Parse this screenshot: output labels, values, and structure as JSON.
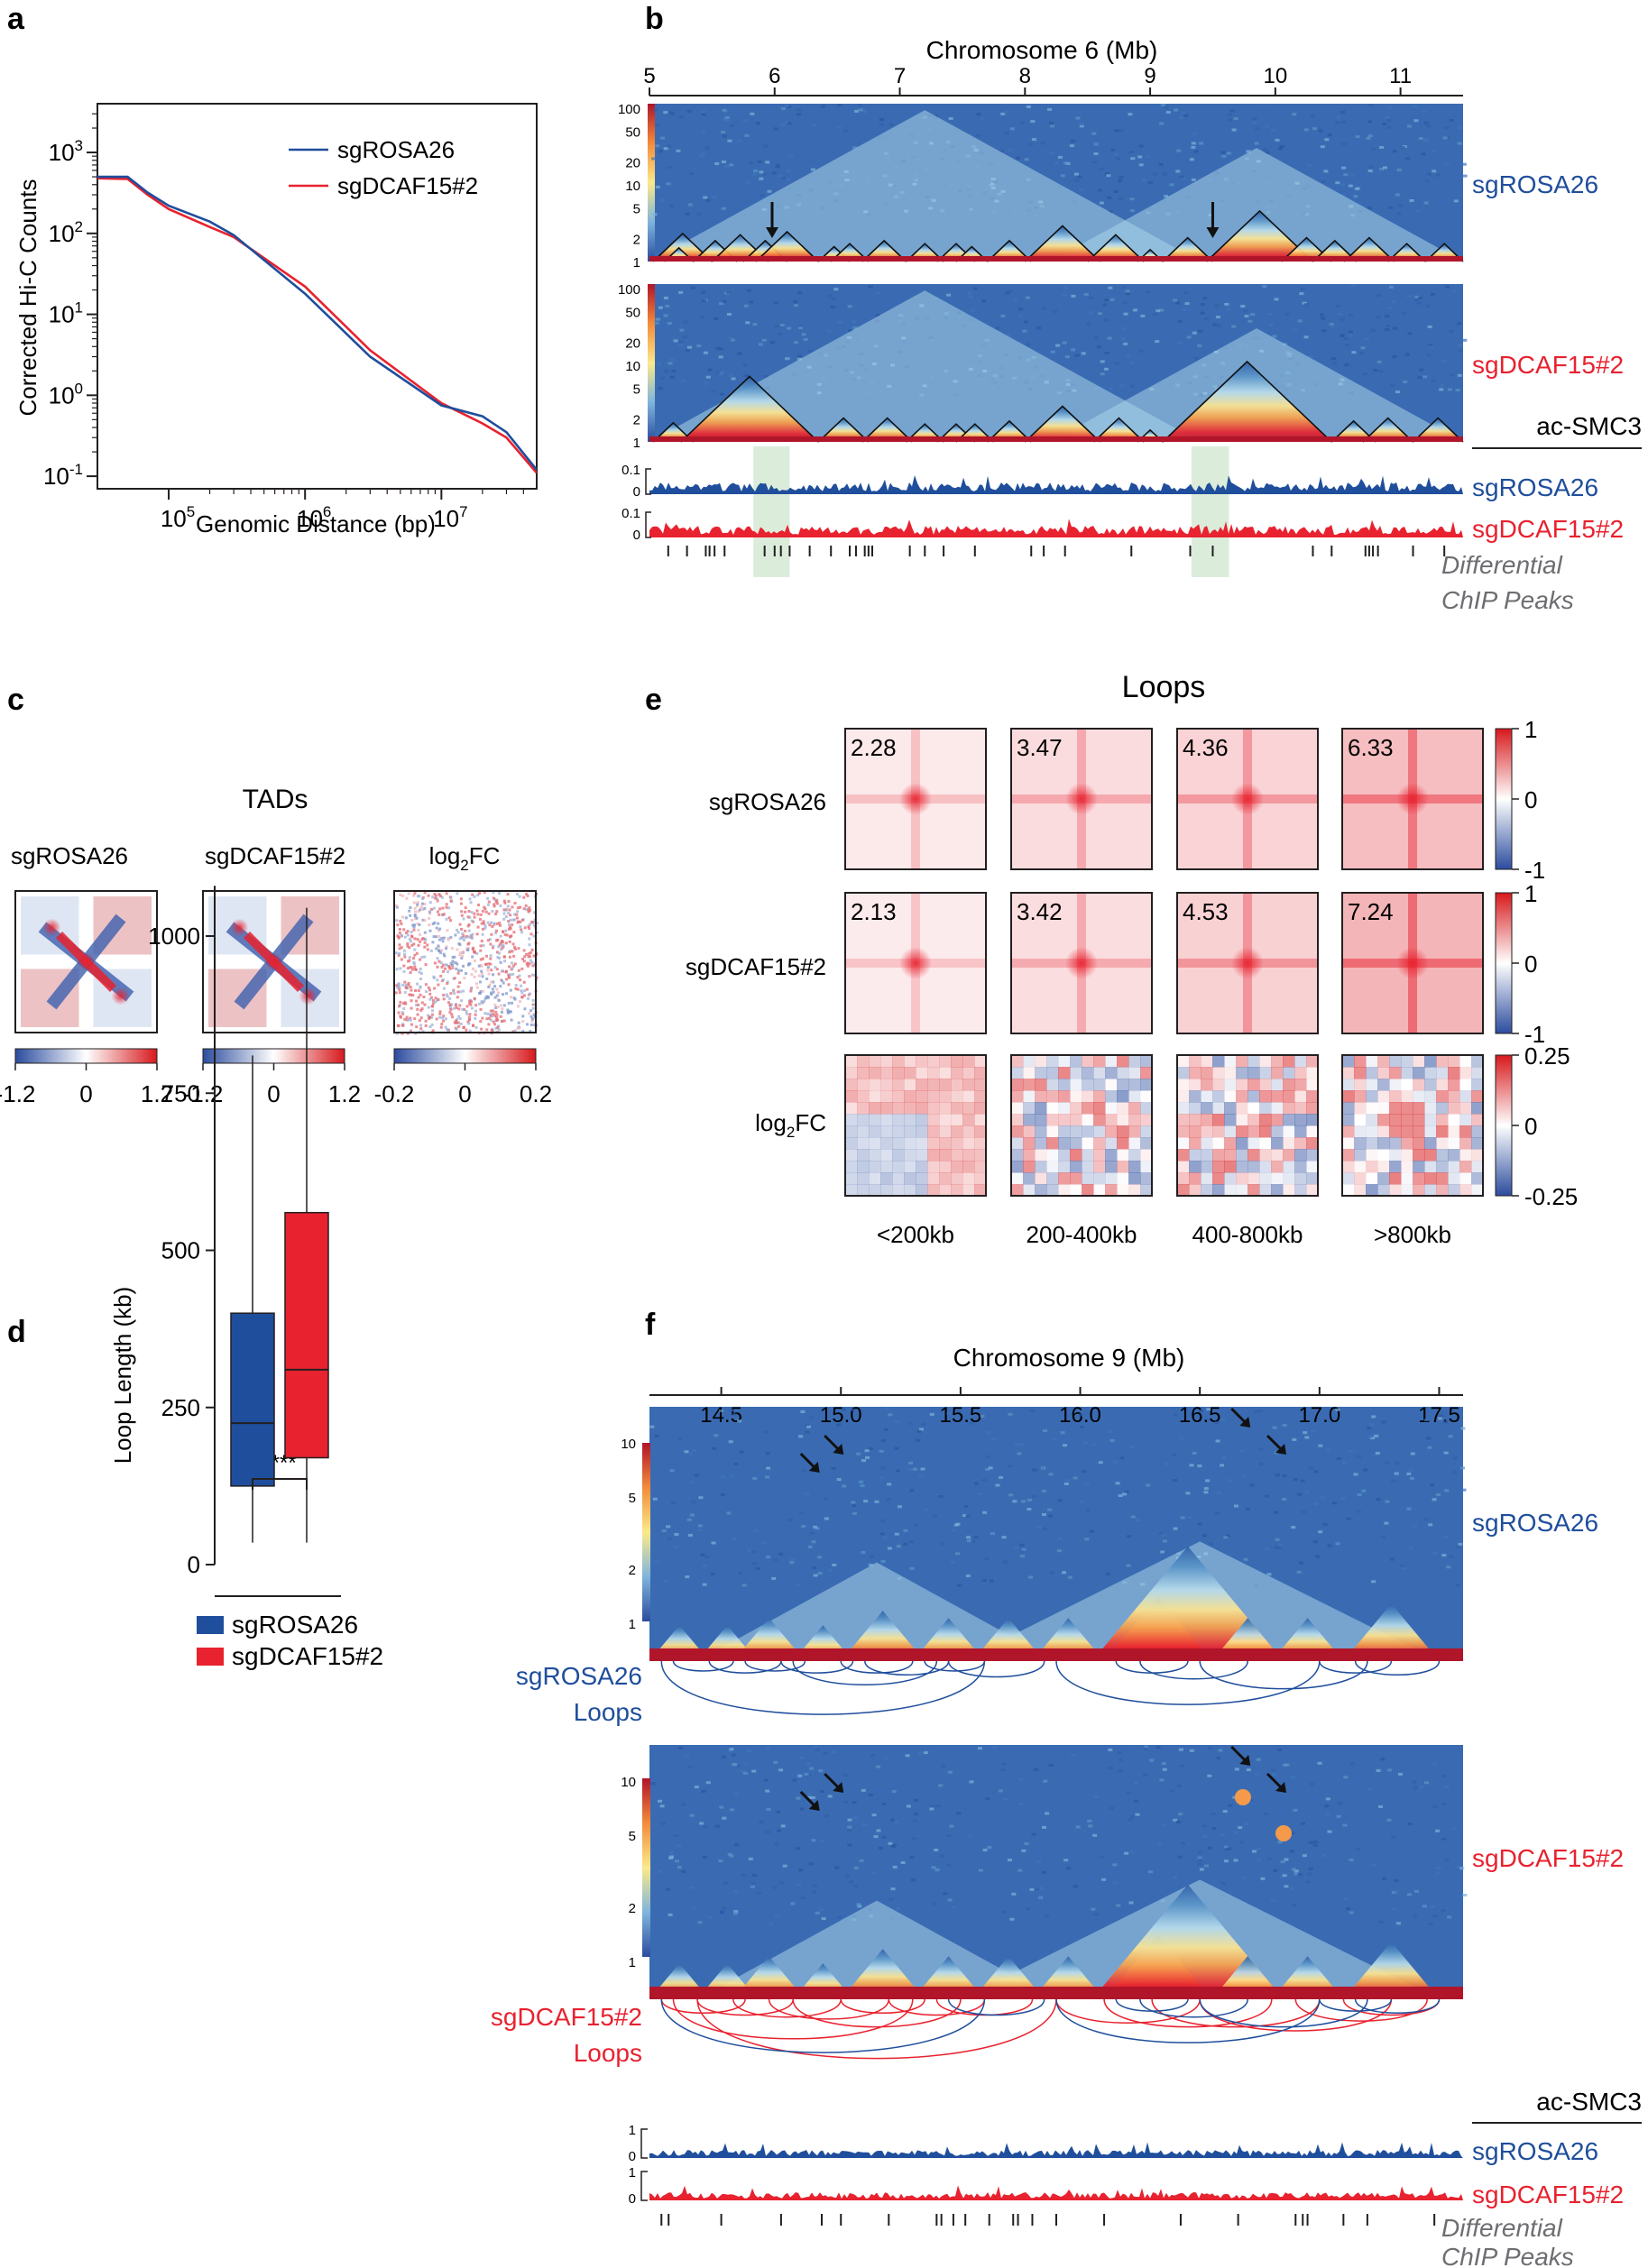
{
  "colors": {
    "blue": "#1f4e9c",
    "red": "#e8222f",
    "dark": "#231f20",
    "grey": "#6d6e71",
    "shade": "#cfe5cf",
    "maroon": "#b0152a"
  },
  "panels": {
    "a": "a",
    "b": "b",
    "c": "c",
    "d": "d",
    "e": "e",
    "f": "f"
  },
  "panel_a": {
    "ylabel": "Corrected Hi-C Counts",
    "xlabel": "Genomic Distance (bp)",
    "legend": [
      {
        "name": "sgROSA26",
        "color": "blue"
      },
      {
        "name": "sgDCAF15#2",
        "color": "red"
      }
    ],
    "chart_data": {
      "type": "line",
      "scale": "log-log",
      "xlim": [
        30000,
        50000000
      ],
      "ylim": [
        0.07,
        4000
      ],
      "xlabel": "Genomic Distance (bp)",
      "ylabel": "Corrected Hi-C Counts",
      "yticks": [
        {
          "base": "10",
          "exp": "-1",
          "v": 0.1
        },
        {
          "base": "10",
          "exp": "0",
          "v": 1
        },
        {
          "base": "10",
          "exp": "1",
          "v": 10
        },
        {
          "base": "10",
          "exp": "2",
          "v": 100
        },
        {
          "base": "10",
          "exp": "3",
          "v": 1000
        }
      ],
      "xticks": [
        {
          "base": "10",
          "exp": "5",
          "v": 100000
        },
        {
          "base": "10",
          "exp": "6",
          "v": 1000000
        },
        {
          "base": "10",
          "exp": "7",
          "v": 10000000
        }
      ],
      "series": [
        {
          "name": "sgROSA26",
          "x": [
            30000,
            50000,
            70000,
            100000,
            200000,
            300000,
            1000000,
            3000000,
            10000000,
            20000000,
            30000000,
            50000000
          ],
          "y": [
            500,
            500,
            320,
            220,
            140,
            95,
            18,
            3.0,
            0.75,
            0.55,
            0.35,
            0.12
          ]
        },
        {
          "name": "sgDCAF15#2",
          "x": [
            30000,
            50000,
            70000,
            100000,
            200000,
            300000,
            1000000,
            3000000,
            10000000,
            20000000,
            30000000,
            50000000
          ],
          "y": [
            480,
            470,
            300,
            200,
            120,
            90,
            22,
            3.6,
            0.8,
            0.45,
            0.3,
            0.11
          ]
        }
      ]
    }
  },
  "panel_b": {
    "title": "Chromosome 6 (Mb)",
    "ticks": [
      "5",
      "6",
      "7",
      "8",
      "9",
      "10",
      "11"
    ],
    "tick_values": [
      5,
      6,
      7,
      8,
      9,
      10,
      11
    ],
    "range": [
      5,
      11.5
    ],
    "scale_ticks": [
      "100",
      "50",
      "20",
      "10",
      "5",
      "2",
      "1"
    ],
    "scale_values": [
      100,
      50,
      20,
      10,
      5,
      2,
      1
    ],
    "tracks": [
      "sgROSA26",
      "sgDCAF15#2"
    ],
    "arrows_mb": [
      5.98,
      9.5
    ],
    "tads_rosa": [
      [
        5.03,
        5.5
      ],
      [
        5.12,
        5.35
      ],
      [
        5.35,
        5.7
      ],
      [
        5.5,
        5.95
      ],
      [
        5.75,
        6.1
      ],
      [
        5.85,
        6.35
      ],
      [
        6.35,
        6.6
      ],
      [
        6.45,
        6.75
      ],
      [
        6.7,
        7.05
      ],
      [
        7.05,
        7.35
      ],
      [
        7.3,
        7.6
      ],
      [
        7.45,
        7.7
      ],
      [
        7.7,
        8.05
      ],
      [
        8.0,
        8.6
      ],
      [
        8.5,
        8.95
      ],
      [
        8.9,
        9.1
      ],
      [
        9.1,
        9.5
      ],
      [
        9.45,
        10.3
      ],
      [
        10.05,
        10.45
      ],
      [
        10.3,
        10.65
      ],
      [
        10.55,
        10.95
      ],
      [
        10.9,
        11.2
      ],
      [
        11.2,
        11.5
      ]
    ],
    "tads_dcaf": [
      [
        5.03,
        5.35
      ],
      [
        5.25,
        6.35
      ],
      [
        6.35,
        6.75
      ],
      [
        6.7,
        7.1
      ],
      [
        7.05,
        7.35
      ],
      [
        7.3,
        7.6
      ],
      [
        7.45,
        7.75
      ],
      [
        7.7,
        8.05
      ],
      [
        8.0,
        8.6
      ],
      [
        8.55,
        8.95
      ],
      [
        8.9,
        9.1
      ],
      [
        9.1,
        10.45
      ],
      [
        10.45,
        10.8
      ],
      [
        10.7,
        11.1
      ],
      [
        11.1,
        11.5
      ]
    ],
    "chip_label": "ac-SMC3",
    "chip_scale": [
      "0.1",
      "0"
    ],
    "chip_tracks": [
      "sgROSA26",
      "sgDCAF15#2"
    ],
    "diff_label": [
      "Differential",
      "ChIP Peaks"
    ],
    "shade_mb": [
      [
        5.83,
        6.12
      ],
      [
        9.33,
        9.63
      ]
    ],
    "peaks_mb": [
      5.15,
      5.3,
      5.45,
      5.48,
      5.52,
      5.6,
      5.92,
      6.0,
      6.05,
      6.12,
      6.28,
      6.45,
      6.6,
      6.65,
      6.72,
      6.75,
      6.78,
      7.08,
      7.2,
      7.35,
      7.6,
      8.05,
      8.15,
      8.32,
      8.85,
      9.32,
      9.5,
      10.3,
      10.45,
      10.72,
      10.75,
      10.78,
      10.82,
      11.1,
      11.35
    ]
  },
  "panel_c": {
    "title": "TADs",
    "maps": [
      {
        "label": "sgROSA26",
        "sub": ""
      },
      {
        "label": "sgDCAF15#2",
        "sub": ""
      },
      {
        "label": "log",
        "sub": "2",
        "suffix": "FC"
      }
    ],
    "colorbars": [
      [
        "-1.2",
        "0",
        "1.2"
      ],
      [
        "-1.2",
        "0",
        "1.2"
      ],
      [
        "-0.2",
        "0",
        "0.2"
      ]
    ]
  },
  "panel_d": {
    "ylabel": "Loop Length (kb)",
    "significance": "****",
    "yticks": [
      "0",
      "250",
      "500",
      "750",
      "1000"
    ],
    "legend": [
      {
        "name": "sgROSA26",
        "color": "blue"
      },
      {
        "name": "sgDCAF15#2",
        "color": "red"
      }
    ],
    "chart_data": {
      "type": "box",
      "ylabel": "Loop Length (kb)",
      "ylim": [
        0,
        1080
      ],
      "series": [
        {
          "name": "sgROSA26",
          "whisker_low": 35,
          "q1": 125,
          "median": 225,
          "q3": 400,
          "whisker_high": 810
        },
        {
          "name": "sgDCAF15#2",
          "whisker_low": 35,
          "q1": 170,
          "median": 310,
          "q3": 560,
          "whisker_high": 1045
        }
      ],
      "significance": "****"
    }
  },
  "panel_e": {
    "title": "Loops",
    "rows": [
      {
        "label": "sgROSA26"
      },
      {
        "label": "sgDCAF15#2"
      },
      {
        "label": "log",
        "sub": "2",
        "suffix": "FC"
      }
    ],
    "columns": [
      "<200kb",
      "200-400kb",
      "400-800kb",
      ">800kb"
    ],
    "values": [
      [
        "2.28",
        "3.47",
        "4.36",
        "6.33"
      ],
      [
        "2.13",
        "3.42",
        "4.53",
        "7.24"
      ]
    ],
    "colorbars": [
      [
        "1",
        "0",
        "-1"
      ],
      [
        "1",
        "0",
        "-1"
      ],
      [
        "0.25",
        "0",
        "-0.25"
      ]
    ],
    "chart_data": {
      "type": "heatmap",
      "rows": [
        "sgROSA26",
        "sgDCAF15#2"
      ],
      "columns": [
        "<200kb",
        "200-400kb",
        "400-800kb",
        ">800kb"
      ],
      "values": [
        [
          2.28,
          3.47,
          4.36,
          6.33
        ],
        [
          2.13,
          3.42,
          4.53,
          7.24
        ]
      ]
    }
  },
  "panel_f": {
    "title": "Chromosome 9 (Mb)",
    "ticks": [
      "14.5",
      "15.0",
      "15.5",
      "16.0",
      "16.5",
      "17.0",
      "17.5"
    ],
    "tick_values": [
      14.5,
      15.0,
      15.5,
      16.0,
      16.5,
      17.0,
      17.5
    ],
    "range": [
      14.2,
      17.6
    ],
    "scale_ticks": [
      "10",
      "5",
      "2",
      "1"
    ],
    "scale_values": [
      10,
      5,
      2,
      1
    ],
    "tracks": [
      "sgROSA26",
      "sgDCAF15#2"
    ],
    "loop_labels": [
      [
        "sgROSA26",
        "Loops"
      ],
      [
        "sgDCAF15#2",
        "Loops"
      ]
    ],
    "chip_label": "ac-SMC3",
    "chip_scale": [
      "1",
      "0"
    ],
    "chip_tracks": [
      "sgROSA26",
      "sgDCAF15#2"
    ],
    "diff_label": [
      "Differential",
      "ChIP Peaks"
    ],
    "peaks_mb": [
      14.25,
      14.28,
      14.5,
      14.75,
      14.92,
      15.0,
      15.2,
      15.4,
      15.42,
      15.47,
      15.52,
      15.62,
      15.72,
      15.74,
      15.8,
      15.9,
      16.1,
      16.42,
      16.66,
      16.9,
      16.93,
      16.95,
      17.1,
      17.2,
      17.48
    ],
    "tads_mb": [
      [
        14.2,
        14.45
      ],
      [
        14.4,
        14.65
      ],
      [
        14.55,
        14.85
      ],
      [
        14.8,
        15.05
      ],
      [
        15.0,
        15.35
      ],
      [
        15.3,
        15.6
      ],
      [
        15.55,
        15.85
      ],
      [
        15.8,
        16.1
      ],
      [
        16.1,
        16.55
      ],
      [
        16.05,
        16.85
      ],
      [
        16.55,
        16.85
      ],
      [
        16.8,
        17.1
      ],
      [
        17.1,
        17.5
      ]
    ],
    "arrows_mb": [
      [
        14.9,
        8
      ],
      [
        15.0,
        12
      ],
      [
        16.7,
        18
      ],
      [
        16.85,
        12
      ]
    ]
  }
}
